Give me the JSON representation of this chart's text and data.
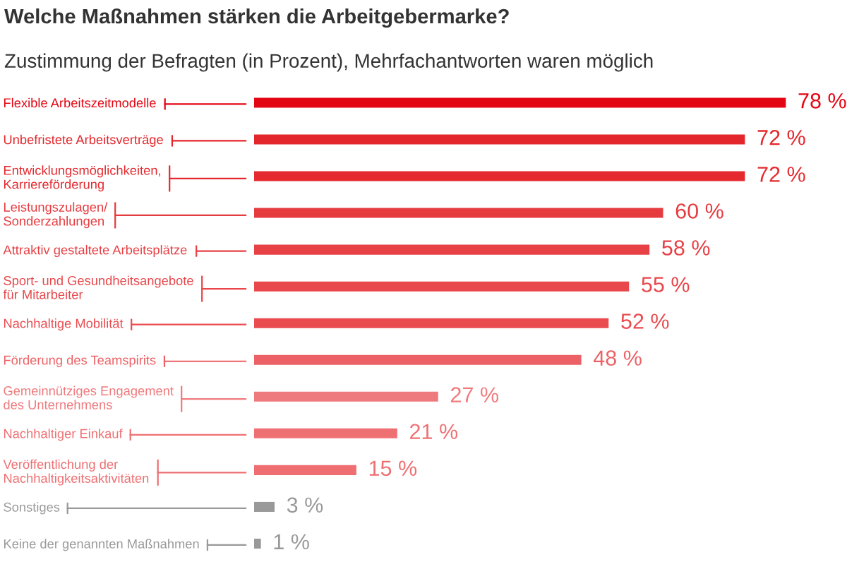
{
  "chart_data": {
    "type": "bar",
    "orientation": "horizontal",
    "title": "Welche Maßnahmen stärken die Arbeitgebermarke?",
    "subtitle": "Zustimmung der Befragten (in Prozent), Mehrfachantworten waren möglich",
    "categories": [
      "Flexible Arbeitszeitmodelle",
      "Unbefristete Arbeitsverträge",
      "Entwicklungsmöglichkeiten,\nKarriereförderung",
      "Leistungszulagen/\nSonderzahlungen",
      "Attraktiv gestaltete Arbeitsplätze",
      "Sport- und Gesundheitsangebote\nfür Mitarbeiter",
      "Nachhaltige Mobilität",
      "Förderung des Teamspirits",
      "Gemeinnütziges Engagement\ndes Unternehmens",
      "Nachhaltiger Einkauf",
      "Veröffentlichung der\nNachhaltigkeitsaktivitäten",
      "Sonstiges",
      "Keine der genannten Maßnahmen"
    ],
    "values": [
      78,
      72,
      72,
      60,
      58,
      55,
      52,
      48,
      27,
      21,
      15,
      3,
      1
    ],
    "value_labels": [
      "78 %",
      "72 %",
      "72 %",
      "60 %",
      "58 %",
      "55 %",
      "52 %",
      "48 %",
      "27 %",
      "21 %",
      "15 %",
      "3 %",
      "1 %"
    ],
    "colors": [
      "#e30613",
      "#e3262b",
      "#e42a2f",
      "#e63b3f",
      "#e74045",
      "#e8474b",
      "#e94b4f",
      "#ec6165",
      "#ef7a7d",
      "#ef7073",
      "#ee6e71",
      "#999999",
      "#999999"
    ],
    "tick_labels": "y",
    "grid": false,
    "legend": false
  }
}
